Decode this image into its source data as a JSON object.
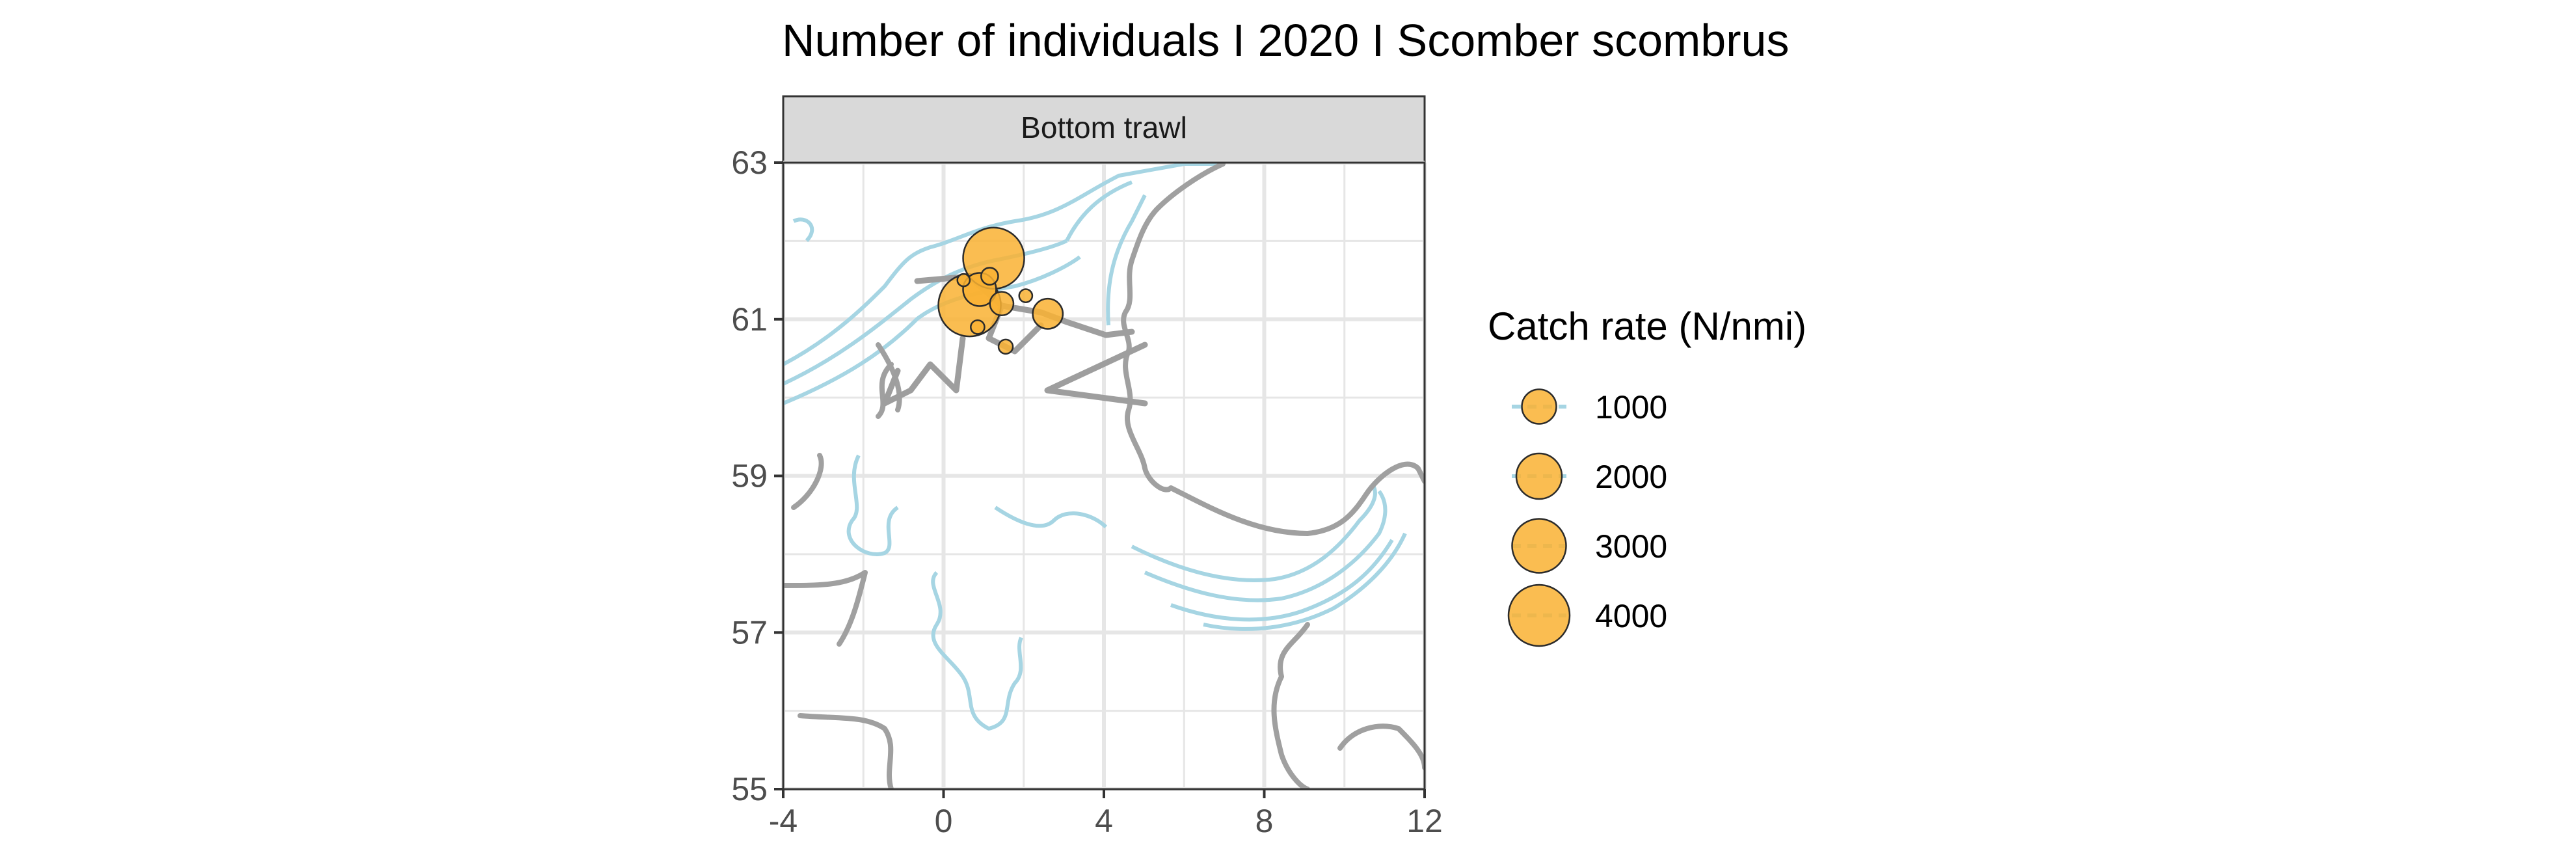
{
  "chart_data": {
    "type": "scatter",
    "title": "Number of individuals I 2020 I Scomber scombrus",
    "facet_label": "Bottom trawl",
    "xlabel": "",
    "ylabel": "",
    "xlim": [
      -4,
      12
    ],
    "ylim": [
      55,
      63
    ],
    "x_ticks": [
      -4,
      0,
      4,
      8,
      12
    ],
    "x_tick_labels": [
      "-4",
      "0",
      "4",
      "8",
      "12"
    ],
    "y_ticks": [
      55,
      57,
      59,
      61,
      63
    ],
    "y_tick_labels": [
      "55",
      "57",
      "59",
      "61",
      "63"
    ],
    "grid": true,
    "legend": {
      "title": "Catch rate (N/nmi)",
      "placement": "right",
      "entries": [
        {
          "label": "1000",
          "value": 1000
        },
        {
          "label": "2000",
          "value": 2000
        },
        {
          "label": "3000",
          "value": 3000
        },
        {
          "label": "4000",
          "value": 4000
        }
      ]
    },
    "colors": {
      "points": "#F9B233",
      "point_outline": "#2b2b2b",
      "coastline": "#a0a0a0",
      "depth_contours": "#a6d5e3",
      "grid": "#e6e6e6",
      "facet_strip": "#d9d9d9"
    },
    "points": [
      {
        "lon": 1.25,
        "lat": 61.78,
        "catch_rate": 4000
      },
      {
        "lon": 0.65,
        "lat": 61.18,
        "catch_rate": 4200
      },
      {
        "lon": 0.9,
        "lat": 61.38,
        "catch_rate": 900
      },
      {
        "lon": 2.6,
        "lat": 61.07,
        "catch_rate": 700
      },
      {
        "lon": 1.45,
        "lat": 61.2,
        "catch_rate": 350
      },
      {
        "lon": 1.15,
        "lat": 61.55,
        "catch_rate": 120
      },
      {
        "lon": 1.55,
        "lat": 60.65,
        "catch_rate": 60
      },
      {
        "lon": 0.85,
        "lat": 60.9,
        "catch_rate": 50
      },
      {
        "lon": 2.05,
        "lat": 61.3,
        "catch_rate": 40
      },
      {
        "lon": 0.5,
        "lat": 61.5,
        "catch_rate": 30
      }
    ]
  }
}
